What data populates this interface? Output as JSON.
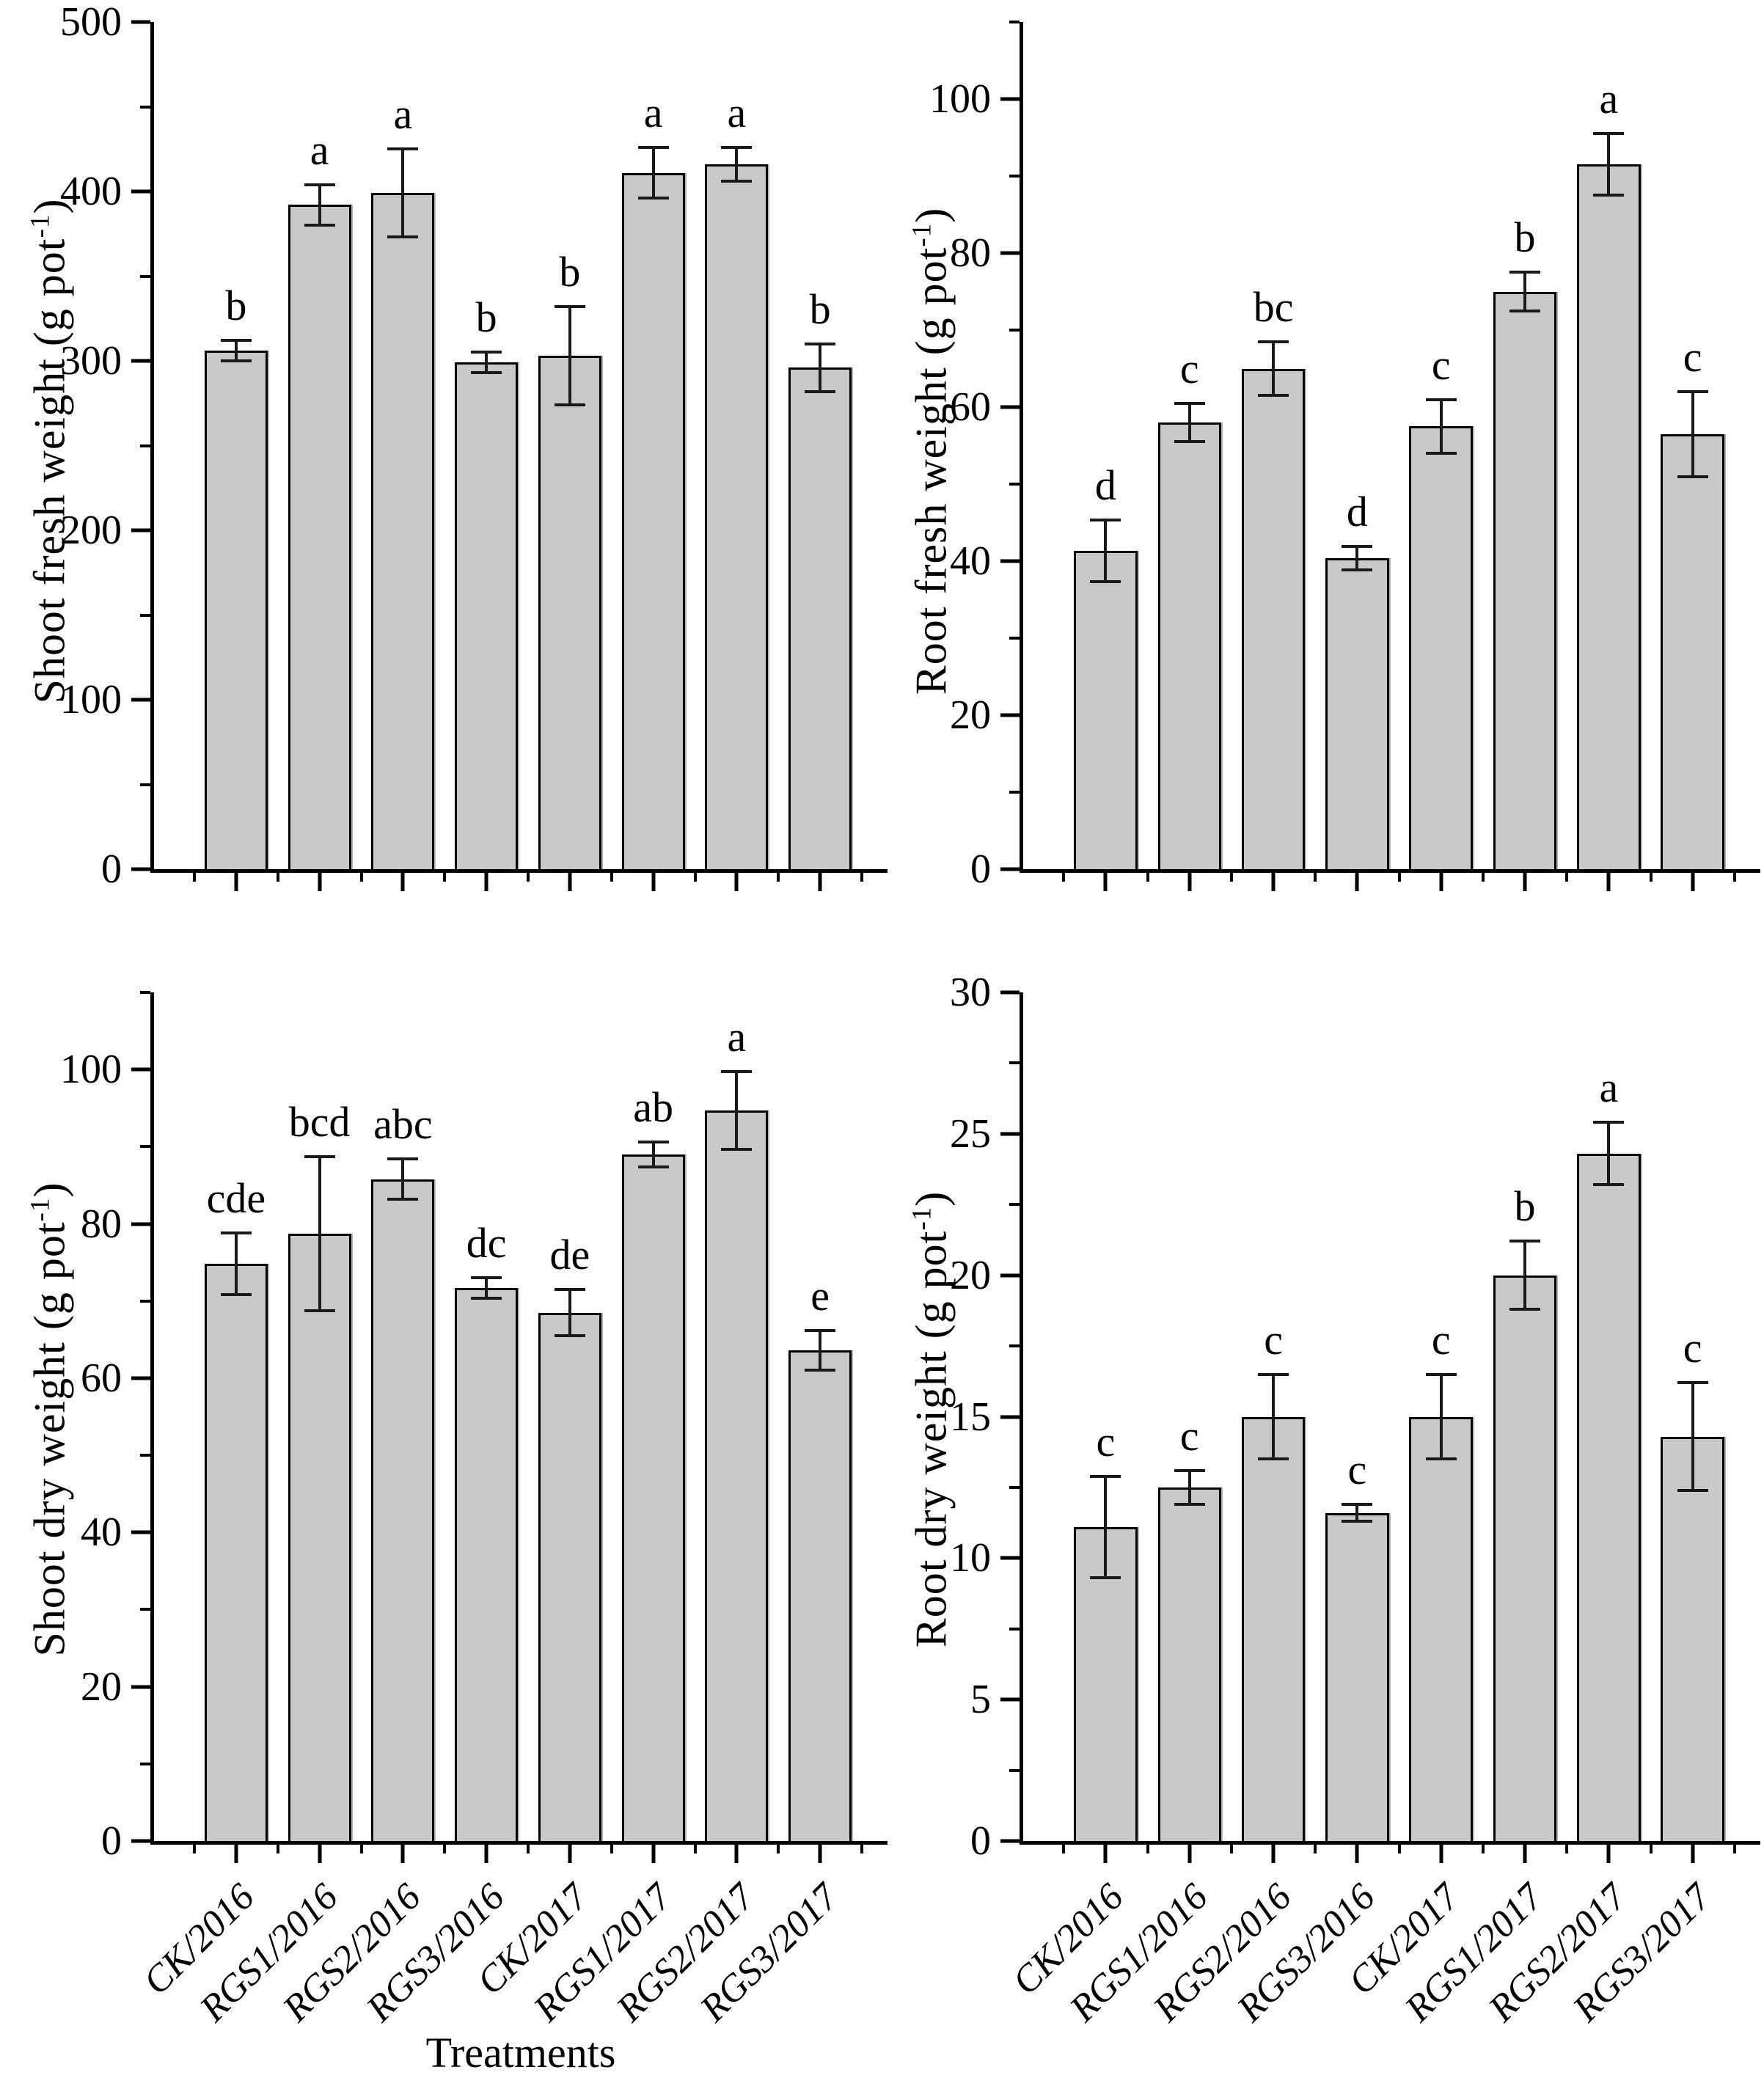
{
  "figure_title": "",
  "styles": {
    "bar_fill": "#c9c9c9",
    "bar_border": "#000000",
    "error_bar_color": "#1a1a1a",
    "axis_color": "#000000",
    "background": "#fdfdfd",
    "text_color": "#000000"
  },
  "categories": [
    "CK/2016",
    "RGS1/2016",
    "RGS2/2016",
    "RGS3/2016",
    "CK/2017",
    "RGS1/2017",
    "RGS2/2017",
    "RGS3/2017"
  ],
  "chart_data": [
    {
      "id": "shoot-fresh-weight",
      "type": "bar",
      "position": "top-left",
      "ylabel_pre": "Shoot fresh weight (g pot",
      "ylabel_sup": "-1",
      "ylabel_post": ")",
      "xlabel": "",
      "ylim": [
        0,
        500
      ],
      "ytick_major": [
        0,
        100,
        200,
        300,
        400,
        500
      ],
      "ytick_minor_step": 50,
      "grid": false,
      "legend": "none",
      "categories": [
        "CK/2016",
        "RGS1/2016",
        "RGS2/2016",
        "RGS3/2016",
        "CK/2017",
        "RGS1/2017",
        "RGS2/2017",
        "RGS3/2017"
      ],
      "values": [
        306,
        392,
        399,
        299,
        303,
        411,
        416,
        296
      ],
      "errors": [
        6,
        12,
        26,
        6,
        29,
        15,
        10,
        14
      ],
      "sig_letters": [
        "b",
        "a",
        "a",
        "b",
        "b",
        "a",
        "a",
        "b"
      ],
      "show_x_labels": false
    },
    {
      "id": "root-fresh-weight",
      "type": "bar",
      "position": "top-right",
      "ylabel_pre": "Root fresh weight (g pot",
      "ylabel_sup": "-1",
      "ylabel_post": ")",
      "xlabel": "",
      "ylim": [
        0,
        110
      ],
      "ytick_major": [
        0,
        20,
        40,
        60,
        80,
        100
      ],
      "ytick_minor_step": 10,
      "grid": false,
      "legend": "none",
      "categories": [
        "CK/2016",
        "RGS1/2016",
        "RGS2/2016",
        "RGS3/2016",
        "CK/2017",
        "RGS1/2017",
        "RGS2/2017",
        "RGS3/2017"
      ],
      "values": [
        41.3,
        58,
        65,
        40.4,
        57.5,
        75,
        91.5,
        56.5
      ],
      "errors": [
        4,
        2.5,
        3.5,
        1.5,
        3.5,
        2.5,
        4,
        5.5
      ],
      "sig_letters": [
        "d",
        "c",
        "bc",
        "d",
        "c",
        "b",
        "a",
        "c"
      ],
      "show_x_labels": false
    },
    {
      "id": "shoot-dry-weight",
      "type": "bar",
      "position": "bottom-left",
      "ylabel_pre": "Shoot dry weight (g pot",
      "ylabel_sup": "-1",
      "ylabel_post": ")",
      "xlabel": "Treatments",
      "ylim": [
        0,
        110
      ],
      "ytick_major": [
        0,
        20,
        40,
        60,
        80,
        100
      ],
      "ytick_minor_step": 10,
      "grid": false,
      "legend": "none",
      "categories": [
        "CK/2016",
        "RGS1/2016",
        "RGS2/2016",
        "RGS3/2016",
        "CK/2017",
        "RGS1/2017",
        "RGS2/2017",
        "RGS3/2017"
      ],
      "values": [
        74.8,
        78.7,
        85.8,
        71.7,
        68.5,
        89,
        94.7,
        63.6
      ],
      "errors": [
        4,
        10,
        2.6,
        1.3,
        3,
        1.6,
        5,
        2.6
      ],
      "sig_letters": [
        "cde",
        "bcd",
        "abc",
        "dc",
        "de",
        "ab",
        "a",
        "e"
      ],
      "show_x_labels": true
    },
    {
      "id": "root-dry-weight",
      "type": "bar",
      "position": "bottom-right",
      "ylabel_pre": "Root dry weight (g pot",
      "ylabel_sup": "-1",
      "ylabel_post": ")",
      "xlabel": "Treatments",
      "ylim": [
        0,
        30
      ],
      "ytick_major": [
        0,
        5,
        10,
        15,
        20,
        25,
        30
      ],
      "ytick_minor_step": 2.5,
      "grid": false,
      "legend": "none",
      "categories": [
        "CK/2016",
        "RGS1/2016",
        "RGS2/2016",
        "RGS3/2016",
        "CK/2017",
        "RGS1/2017",
        "RGS2/2017",
        "RGS3/2017"
      ],
      "values": [
        11.1,
        12.5,
        15.0,
        11.6,
        15.0,
        20.0,
        24.3,
        14.3
      ],
      "errors": [
        1.8,
        0.6,
        1.5,
        0.3,
        1.5,
        1.2,
        1.1,
        1.9
      ],
      "sig_letters": [
        "c",
        "c",
        "c",
        "c",
        "c",
        "b",
        "a",
        "c"
      ],
      "show_x_labels": true
    }
  ]
}
